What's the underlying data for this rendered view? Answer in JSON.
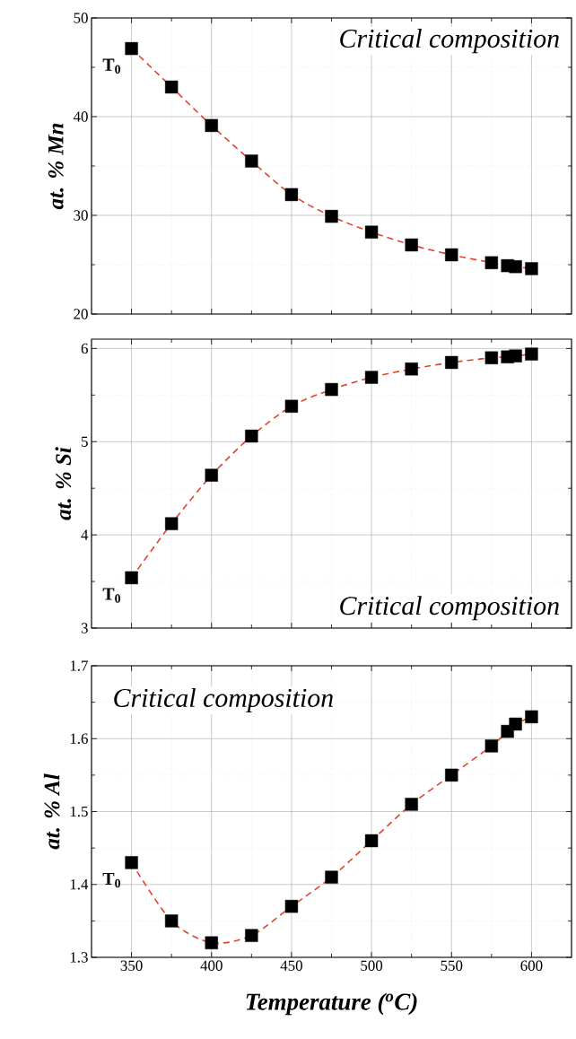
{
  "chart_data": [
    {
      "type": "line",
      "ylabel": "*at. % Mn*",
      "annotations": [
        "Critical composition",
        "**T$_{0}$**"
      ],
      "x": [
        350,
        375,
        400,
        425,
        450,
        475,
        500,
        525,
        550,
        575,
        585,
        590,
        600
      ],
      "series": [
        {
          "color": "#e0442a",
          "values": [
            46.9,
            43.0,
            39.1,
            35.5,
            32.1,
            29.9,
            28.3,
            27.0,
            26.0,
            25.2,
            24.9,
            24.8,
            24.6
          ]
        }
      ],
      "xlim": [
        325,
        625
      ],
      "xticks": [
        350,
        {
          "value": 375,
          "label": null
        },
        400,
        {
          "value": 425,
          "label": null
        },
        450,
        {
          "value": 475,
          "label": null
        },
        500,
        {
          "value": 525,
          "label": null
        },
        550,
        {
          "value": 575,
          "label": null
        },
        600
      ],
      "ylim": [
        20,
        50
      ],
      "yticks": [
        20,
        {
          "value": 25,
          "label": null
        },
        30,
        {
          "value": 35,
          "label": null
        },
        40,
        {
          "value": 45,
          "label": null
        },
        50
      ],
      "grid": true,
      "marker": "square",
      "line_style": "dashed",
      "tick_labels": "y"
    },
    {
      "type": "line",
      "ylabel": "*at. % Si*",
      "annotations": [
        "Critical composition",
        "**T$_{0}$**"
      ],
      "x": [
        350,
        375,
        400,
        425,
        450,
        475,
        500,
        525,
        550,
        575,
        585,
        590,
        600
      ],
      "series": [
        {
          "color": "#e0442a",
          "values": [
            3.54,
            4.12,
            4.64,
            5.06,
            5.38,
            5.56,
            5.69,
            5.78,
            5.85,
            5.9,
            5.91,
            5.92,
            5.94
          ]
        }
      ],
      "xlim": [
        325,
        625
      ],
      "xticks": [
        350,
        {
          "value": 375,
          "label": null
        },
        400,
        {
          "value": 425,
          "label": null
        },
        450,
        {
          "value": 475,
          "label": null
        },
        500,
        {
          "value": 525,
          "label": null
        },
        550,
        {
          "value": 575,
          "label": null
        },
        600
      ],
      "ylim": [
        3,
        6.1
      ],
      "yticks": [
        3,
        {
          "value": 3.5,
          "label": null
        },
        4,
        {
          "value": 4.5,
          "label": null
        },
        5,
        {
          "value": 5.5,
          "label": null
        },
        6
      ],
      "grid": true,
      "marker": "square",
      "line_style": "dashed",
      "tick_labels": "y"
    },
    {
      "type": "line",
      "ylabel": "*at. % Al*",
      "xlabel": "*Temperature ($^{o}$C)*",
      "annotations": [
        "Critical composition",
        "**T$_{0}$**"
      ],
      "x": [
        350,
        375,
        400,
        425,
        450,
        475,
        500,
        525,
        550,
        575,
        585,
        590,
        600
      ],
      "series": [
        {
          "color": "#e0442a",
          "values": [
            1.43,
            1.35,
            1.32,
            1.33,
            1.37,
            1.41,
            1.46,
            1.51,
            1.55,
            1.59,
            1.61,
            1.62,
            1.63
          ]
        }
      ],
      "xlim": [
        325,
        625
      ],
      "xticks": [
        350,
        {
          "value": 375,
          "label": null
        },
        400,
        {
          "value": 425,
          "label": null
        },
        450,
        {
          "value": 475,
          "label": null
        },
        500,
        {
          "value": 525,
          "label": null
        },
        550,
        {
          "value": 575,
          "label": null
        },
        600
      ],
      "ylim": [
        1.3,
        1.7
      ],
      "yticks": [
        1.3,
        {
          "value": 1.35,
          "label": null
        },
        1.4,
        {
          "value": 1.45,
          "label": null
        },
        1.5,
        {
          "value": 1.55,
          "label": null
        },
        1.6,
        {
          "value": 1.65,
          "label": null
        },
        1.7
      ],
      "grid": true,
      "marker": "square",
      "line_style": "dashed"
    }
  ]
}
